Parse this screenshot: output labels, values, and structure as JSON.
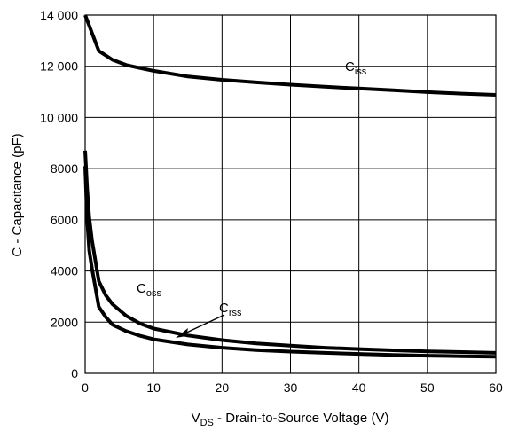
{
  "chart_data": {
    "type": "line",
    "title": "",
    "xlabel": {
      "main": "V",
      "sub": "DS",
      "rest": " - Drain-to-Source Voltage (V)"
    },
    "ylabel": "C - Capacitance (pF)",
    "xlim": [
      0,
      60
    ],
    "ylim": [
      0,
      14000
    ],
    "xticks": [
      0,
      10,
      20,
      30,
      40,
      50,
      60
    ],
    "xtick_labels": [
      "0",
      "10",
      "20",
      "30",
      "40",
      "50",
      "60"
    ],
    "yticks": [
      0,
      2000,
      4000,
      6000,
      8000,
      10000,
      12000,
      14000
    ],
    "ytick_labels": [
      "0",
      "2000",
      "4000",
      "6000",
      "8000",
      "10 000",
      "12 000",
      "14 000"
    ],
    "grid": true,
    "colors": {
      "line": "#000000",
      "grid": "#000000",
      "background": "#ffffff"
    },
    "series": [
      {
        "name": "Ciss",
        "label_main": "C",
        "label_sub": "iss",
        "x": [
          0,
          0.5,
          1,
          2,
          4,
          6,
          8,
          10,
          15,
          20,
          25,
          30,
          35,
          40,
          45,
          50,
          55,
          60
        ],
        "y": [
          14000,
          13650,
          13300,
          12600,
          12250,
          12050,
          11930,
          11820,
          11600,
          11470,
          11370,
          11280,
          11200,
          11130,
          11060,
          10990,
          10930,
          10880
        ]
      },
      {
        "name": "Coss",
        "label_main": "C",
        "label_sub": "oss",
        "x": [
          0,
          0.3,
          0.6,
          1,
          2,
          3,
          4,
          6,
          8,
          10,
          15,
          20,
          25,
          30,
          35,
          40,
          45,
          50,
          55,
          60
        ],
        "y": [
          8700,
          7200,
          6100,
          5200,
          3600,
          3050,
          2700,
          2250,
          1950,
          1750,
          1480,
          1300,
          1170,
          1080,
          1000,
          950,
          900,
          860,
          830,
          800
        ]
      },
      {
        "name": "Crss",
        "label_main": "C",
        "label_sub": "rss",
        "x": [
          0,
          0.3,
          0.6,
          1,
          2,
          3,
          4,
          6,
          8,
          10,
          15,
          20,
          25,
          30,
          35,
          40,
          45,
          50,
          55,
          60
        ],
        "y": [
          8100,
          6000,
          4800,
          4100,
          2600,
          2200,
          1900,
          1650,
          1470,
          1330,
          1130,
          1000,
          910,
          850,
          800,
          760,
          720,
          690,
          670,
          650
        ]
      }
    ]
  }
}
